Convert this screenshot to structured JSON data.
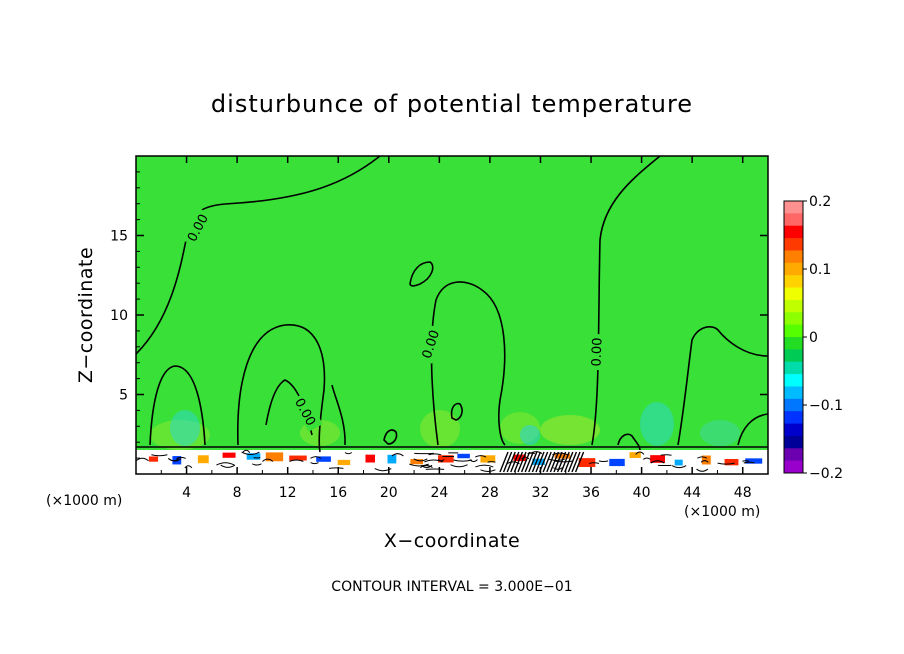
{
  "chart_data": {
    "type": "heatmap",
    "title": "disturbunce of potential temperature",
    "xlabel": "X−coordinate",
    "ylabel": "Z−coordinate",
    "x_unit_label": "(×1000 m)",
    "xlim": [
      0,
      50
    ],
    "ylim": [
      0,
      20
    ],
    "x_ticks": [
      4,
      8,
      12,
      16,
      20,
      24,
      28,
      32,
      36,
      40,
      44,
      48
    ],
    "y_ticks": [
      5,
      10,
      15
    ],
    "contour_interval_text": "CONTOUR INTERVAL = 3.000E−01",
    "contour_label": "0.00",
    "colorbar": {
      "min": -0.2,
      "max": 0.2,
      "tick_labels": [
        "0.2",
        "0.1",
        "0",
        "−0.1",
        "−0.2"
      ],
      "tick_values": [
        0.2,
        0.1,
        0,
        -0.1,
        -0.2
      ],
      "colors": [
        "#ff9090",
        "#ff6666",
        "#ff0000",
        "#ff3a00",
        "#ff7f00",
        "#ffaa00",
        "#ffd200",
        "#f0ff00",
        "#c0ff00",
        "#8cff00",
        "#55ff00",
        "#22dd22",
        "#00cc55",
        "#00ddaa",
        "#00ffff",
        "#00bbff",
        "#0077ff",
        "#0033ff",
        "#0000cc",
        "#000099",
        "#6a00b0",
        "#9900cc"
      ]
    },
    "background_value": 0,
    "background_color": "#38e038"
  }
}
